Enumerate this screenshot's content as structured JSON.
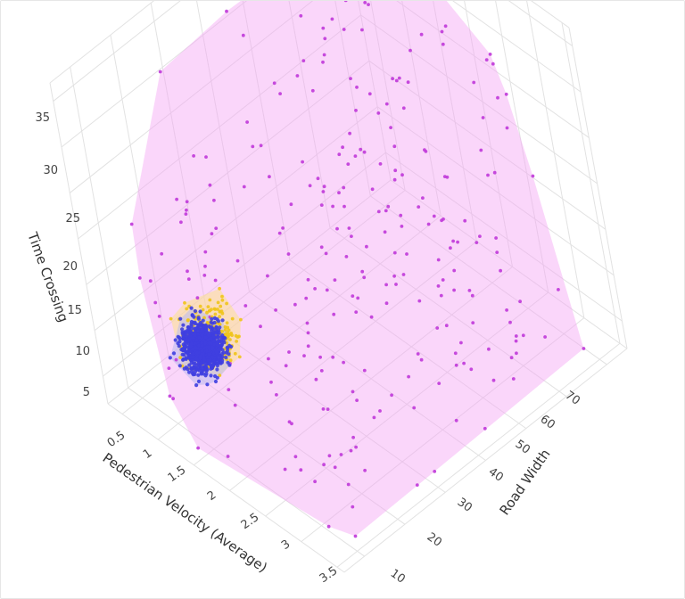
{
  "chart_data": {
    "type": "scatter",
    "mode": "3d-scatter-with-hulls",
    "axes": {
      "x": {
        "label": "Pedestrian Velocity (Average)",
        "range": [
          0.3,
          3.6
        ],
        "ticks": [
          "0.5",
          "1",
          "1.5",
          "2",
          "2.5",
          "3",
          "3.5"
        ]
      },
      "y": {
        "label": "Road Width",
        "range": [
          5,
          75
        ],
        "ticks": [
          "10",
          "20",
          "30",
          "40",
          "50",
          "60",
          "70"
        ]
      },
      "z": {
        "label": "Time Crossing",
        "range": [
          2,
          37
        ],
        "ticks": [
          "5",
          "10",
          "15",
          "20",
          "25",
          "30",
          "35"
        ]
      }
    },
    "grid": true,
    "legend": "none",
    "series": [
      {
        "color": "#c039d9",
        "hull_color": "#f4a3f4",
        "approx_count": 260,
        "x_range": [
          0.4,
          3.5
        ],
        "y_range": [
          8,
          72
        ],
        "z_range": [
          2,
          36
        ]
      },
      {
        "color": "#f0c419",
        "hull_color": "#fbe38a",
        "approx_count": 220,
        "x_range": [
          0.6,
          1.6
        ],
        "y_range": [
          8,
          30
        ],
        "z_range": [
          3,
          15
        ]
      },
      {
        "color": "#3f3fe0",
        "hull_color": "#b9b9ef",
        "approx_count": 900,
        "x_range": [
          0.7,
          1.5
        ],
        "y_range": [
          9,
          25
        ],
        "z_range": [
          4,
          13
        ]
      }
    ]
  }
}
